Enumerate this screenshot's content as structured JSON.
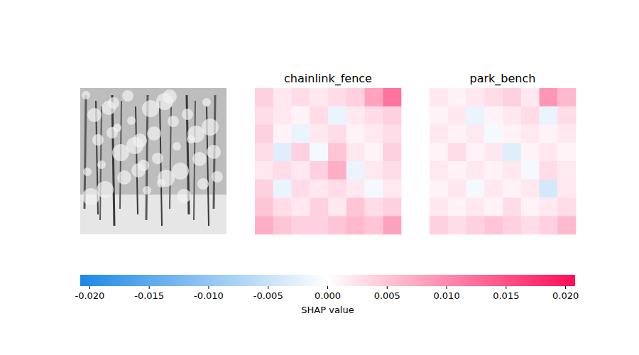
{
  "chart_data": {
    "type": "image_heatmap",
    "panels": [
      {
        "title": "chainlink_fence",
        "values": [
          [
            0.004,
            0.002,
            0.003,
            0.002,
            0.003,
            0.004,
            0.008,
            0.012
          ],
          [
            0.003,
            0.002,
            0.001,
            0.003,
            -0.002,
            0.002,
            0.003,
            0.004
          ],
          [
            0.004,
            0.001,
            -0.002,
            0.002,
            0.003,
            0.001,
            0.002,
            0.003
          ],
          [
            0.003,
            -0.003,
            0.004,
            -0.001,
            0.005,
            0.002,
            0.001,
            0.004
          ],
          [
            0.002,
            0.003,
            0.002,
            0.004,
            0.007,
            -0.002,
            0.002,
            0.003
          ],
          [
            0.004,
            -0.002,
            0.003,
            0.002,
            0.003,
            0.002,
            -0.001,
            0.002
          ],
          [
            0.005,
            0.003,
            0.002,
            0.004,
            0.002,
            0.005,
            0.003,
            0.004
          ],
          [
            0.007,
            0.005,
            0.004,
            0.004,
            0.005,
            0.006,
            0.005,
            0.008
          ]
        ]
      },
      {
        "title": "park_bench",
        "values": [
          [
            0.002,
            0.001,
            0.002,
            0.003,
            0.004,
            0.002,
            0.009,
            0.006
          ],
          [
            0.001,
            0.002,
            -0.002,
            0.001,
            0.002,
            0.003,
            -0.002,
            0.003
          ],
          [
            0.002,
            0.001,
            0.002,
            -0.001,
            0.001,
            0.002,
            0.001,
            0.002
          ],
          [
            0.001,
            0.003,
            0.001,
            0.002,
            -0.003,
            0.001,
            0.002,
            0.001
          ],
          [
            0.002,
            0.001,
            0.002,
            0.001,
            0.002,
            -0.001,
            0.003,
            0.002
          ],
          [
            0.001,
            0.002,
            -0.001,
            0.002,
            0.001,
            0.002,
            -0.004,
            0.002
          ],
          [
            0.002,
            0.001,
            0.002,
            0.001,
            0.003,
            0.001,
            0.002,
            0.003
          ],
          [
            0.004,
            0.003,
            0.004,
            0.005,
            0.004,
            0.003,
            0.004,
            0.006
          ]
        ]
      }
    ],
    "colorbar": {
      "label": "SHAP value",
      "range": [
        -0.0208,
        0.0208
      ],
      "ticks": [
        {
          "value": -0.02,
          "label": "-0.020"
        },
        {
          "value": -0.015,
          "label": "-0.015"
        },
        {
          "value": -0.01,
          "label": "-0.010"
        },
        {
          "value": -0.005,
          "label": "-0.005"
        },
        {
          "value": 0,
          "label": "0.000"
        },
        {
          "value": 0.005,
          "label": "0.005"
        },
        {
          "value": 0.01,
          "label": "0.010"
        },
        {
          "value": 0.015,
          "label": "0.015"
        },
        {
          "value": 0.02,
          "label": "0.020"
        }
      ]
    }
  }
}
